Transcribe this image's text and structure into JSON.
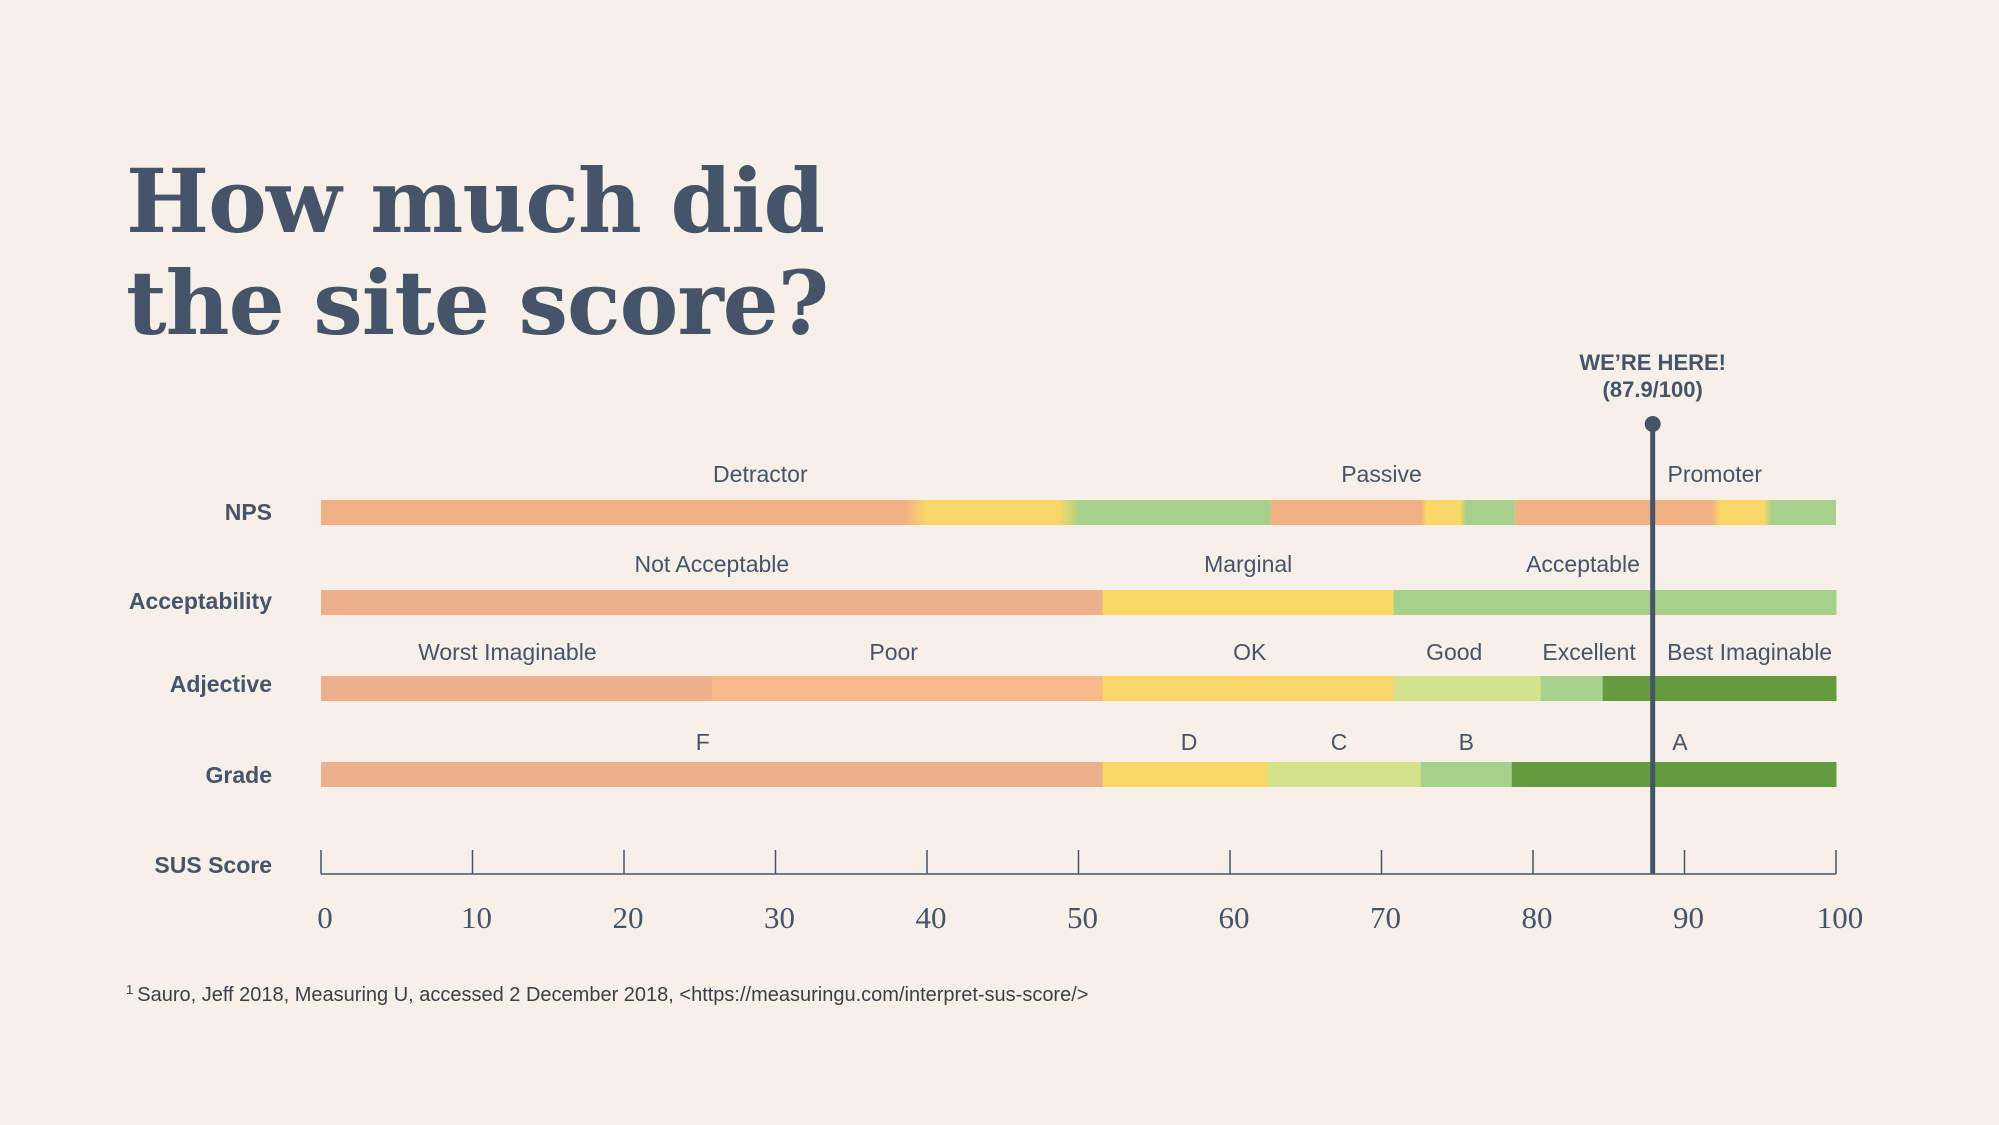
{
  "title": {
    "line1": "How much did",
    "line2": "the site score?"
  },
  "footnote": {
    "marker": "1",
    "text": "Sauro, Jeff 2018, Measuring U, accessed 2 December 2018, <https://measuringu.com/interpret-sus-score/>"
  },
  "chart_data": {
    "type": "bar",
    "axis": {
      "label": "SUS Score",
      "min": 0,
      "max": 100,
      "ticks": [
        0,
        10,
        20,
        30,
        40,
        50,
        60,
        70,
        80,
        90,
        100
      ],
      "tick_labels": [
        "0",
        "10",
        "20",
        "30",
        "40",
        "50",
        "60",
        "70",
        "80",
        "90",
        "100"
      ]
    },
    "marker": {
      "value": 87.9,
      "label_line1": "WE’RE HERE!",
      "label_line2": "(87.9/100)"
    },
    "rows": [
      {
        "label": "NPS",
        "segments": [
          {
            "label": "Detractor",
            "start": 0,
            "end": 62.7,
            "color": "#f2b184",
            "label_at": 29
          },
          {
            "label": "Passive",
            "start": 62.7,
            "end": 78.8,
            "color": "#f9d868",
            "label_at": 70
          },
          {
            "label": "Promoter",
            "start": 78.8,
            "end": 100,
            "color": "#a6d08c",
            "label_at": 92
          }
        ],
        "blend": true
      },
      {
        "label": "Acceptability",
        "segments": [
          {
            "label": "Not Acceptable",
            "start": 0,
            "end": 51.6,
            "color": "#edb08c",
            "label_at": 25.8
          },
          {
            "label": "Marginal",
            "start": 51.6,
            "end": 70.8,
            "color": "#f9d868",
            "label_at": 61.2
          },
          {
            "label": "Acceptable",
            "start": 70.8,
            "end": 100,
            "color": "#a6d08c",
            "label_at": 83.3
          }
        ]
      },
      {
        "label": "Adjective",
        "segments": [
          {
            "label": "Worst Imaginable",
            "start": 0,
            "end": 25.8,
            "color": "#edb08c",
            "label_at": 12.3
          },
          {
            "label": "Poor",
            "start": 25.8,
            "end": 51.6,
            "color": "#f5b98a",
            "label_at": 37.8
          },
          {
            "label": "OK",
            "start": 51.6,
            "end": 70.8,
            "color": "#f9d868",
            "label_at": 61.3
          },
          {
            "label": "Good",
            "start": 70.8,
            "end": 80.5,
            "color": "#d4e28c",
            "label_at": 74.8
          },
          {
            "label": "Excellent",
            "start": 80.5,
            "end": 84.6,
            "color": "#a6d08c",
            "label_at": 83.7
          },
          {
            "label": "Best Imaginable",
            "start": 84.6,
            "end": 100,
            "color": "#659a3e",
            "label_at": 94.3
          }
        ]
      },
      {
        "label": "Grade",
        "segments": [
          {
            "label": "F",
            "start": 0,
            "end": 51.6,
            "color": "#edb08c",
            "label_at": 25.2
          },
          {
            "label": "D",
            "start": 51.6,
            "end": 62.5,
            "color": "#f9d868",
            "label_at": 57.3
          },
          {
            "label": "C",
            "start": 62.5,
            "end": 72.6,
            "color": "#d4e28c",
            "label_at": 67.2
          },
          {
            "label": "B",
            "start": 72.6,
            "end": 78.6,
            "color": "#a6d08c",
            "label_at": 75.6
          },
          {
            "label": "A",
            "start": 78.6,
            "end": 100,
            "color": "#659a3e",
            "label_at": 89.7
          }
        ]
      }
    ],
    "colors": {
      "text": "#46546a",
      "axis": "#46546a",
      "background": "#f7f0e9"
    }
  }
}
